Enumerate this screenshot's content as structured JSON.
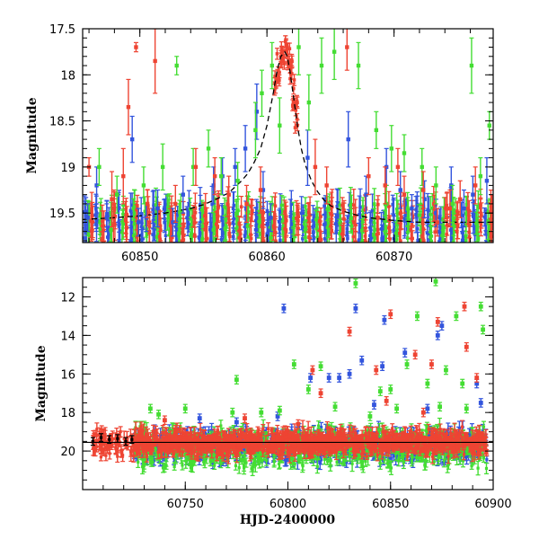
{
  "chart_data": [
    {
      "type": "scatter",
      "panel": "top",
      "title": "",
      "xlabel": "",
      "ylabel": "Magnitude",
      "xlim": [
        60845.5,
        60877.8
      ],
      "ylim": [
        19.82,
        17.5
      ],
      "y_inverted": true,
      "x_ticks": [
        60850,
        60860,
        60870
      ],
      "x_tick_labels": [
        "60850",
        "60860",
        "60870"
      ],
      "y_ticks": [
        17.5,
        18,
        18.5,
        19,
        19.5
      ],
      "y_tick_labels": [
        "17.5",
        "18",
        "18.5",
        "19",
        "19.5"
      ],
      "grid": false,
      "legend": "none",
      "series": [
        {
          "color": "#3355dd",
          "points": [
            [
              60845.9,
              19.55,
              0.15
            ],
            [
              60846.6,
              19.2,
              0.2
            ],
            [
              60847.4,
              19.55,
              0.15
            ],
            [
              60848.3,
              19.45,
              0.15
            ],
            [
              60849.4,
              18.7,
              0.25
            ],
            [
              60849.9,
              19.6,
              0.15
            ],
            [
              60850.5,
              19.55,
              0.15
            ],
            [
              60851.4,
              19.45,
              0.2
            ],
            [
              60852.6,
              19.6,
              0.15
            ],
            [
              60853.4,
              19.3,
              0.2
            ],
            [
              60855.8,
              19.2,
              0.2
            ],
            [
              60856.5,
              19.1,
              0.2
            ],
            [
              60857.5,
              19.0,
              0.2
            ],
            [
              60858.3,
              18.8,
              0.25
            ],
            [
              60859.2,
              18.4,
              0.3
            ],
            [
              60859.7,
              19.25,
              0.2
            ],
            [
              60860.3,
              19.55,
              0.15
            ],
            [
              60863.2,
              18.9,
              0.3
            ],
            [
              60866.4,
              18.7,
              0.3
            ],
            [
              60867.8,
              19.3,
              0.2
            ],
            [
              60869.4,
              19.0,
              0.2
            ],
            [
              60870.5,
              19.25,
              0.2
            ],
            [
              60871.4,
              19.45,
              0.15
            ],
            [
              60872.4,
              19.35,
              0.2
            ],
            [
              60873.3,
              19.5,
              0.15
            ],
            [
              60874.5,
              19.2,
              0.2
            ],
            [
              60875.5,
              19.45,
              0.2
            ],
            [
              60876.2,
              19.3,
              0.2
            ],
            [
              60877.3,
              19.15,
              0.25
            ]
          ]
        },
        {
          "color": "#44dd33",
          "points": [
            [
              60846.8,
              19.0,
              0.2
            ],
            [
              60848.2,
              19.3,
              0.2
            ],
            [
              60850.3,
              19.2,
              0.2
            ],
            [
              60851.8,
              19.0,
              0.25
            ],
            [
              60852.9,
              17.9,
              0.1
            ],
            [
              60854.2,
              19.0,
              0.2
            ],
            [
              60855.4,
              18.8,
              0.2
            ],
            [
              60856.4,
              19.1,
              0.2
            ],
            [
              60857.7,
              19.15,
              0.2
            ],
            [
              60859.1,
              18.6,
              0.3
            ],
            [
              60859.6,
              18.2,
              0.25
            ],
            [
              60860.4,
              17.9,
              0.25
            ],
            [
              60861.0,
              18.55,
              0.3
            ],
            [
              60862.5,
              17.7,
              0.3
            ],
            [
              60863.3,
              18.3,
              0.3
            ],
            [
              60864.3,
              17.9,
              0.3
            ],
            [
              60865.3,
              17.75,
              0.3
            ],
            [
              60867.2,
              17.9,
              0.25
            ],
            [
              60868.6,
              18.6,
              0.2
            ],
            [
              60869.4,
              19.4,
              0.2
            ],
            [
              60869.8,
              18.8,
              0.25
            ],
            [
              60870.8,
              18.85,
              0.2
            ],
            [
              60872.2,
              19.0,
              0.2
            ],
            [
              60873.3,
              19.2,
              0.2
            ],
            [
              60874.6,
              19.4,
              0.2
            ],
            [
              60876.1,
              17.9,
              0.3
            ],
            [
              60876.8,
              19.1,
              0.2
            ],
            [
              60877.5,
              18.55,
              0.15
            ]
          ]
        },
        {
          "color": "#ee4433",
          "points": [
            [
              60846.0,
              19.0,
              0.1
            ],
            [
              60847.8,
              19.35,
              0.3
            ],
            [
              60848.7,
              19.1,
              0.3
            ],
            [
              60849.1,
              18.35,
              0.3
            ],
            [
              60849.7,
              17.7,
              0.05
            ],
            [
              60850.6,
              19.4,
              0.15
            ],
            [
              60851.2,
              17.85,
              0.35
            ],
            [
              60852.8,
              19.4,
              0.2
            ],
            [
              60854.4,
              19.0,
              0.2
            ],
            [
              60855.9,
              19.1,
              0.2
            ],
            [
              60857.0,
              19.3,
              0.2
            ],
            [
              60858.4,
              19.4,
              0.2
            ],
            [
              60859.5,
              19.25,
              0.25
            ],
            [
              60863.8,
              19.0,
              0.3
            ],
            [
              60864.7,
              19.2,
              0.2
            ],
            [
              60866.3,
              17.7,
              0.25
            ],
            [
              60868.0,
              19.1,
              0.2
            ],
            [
              60869.3,
              19.2,
              0.2
            ],
            [
              60870.3,
              19.0,
              0.2
            ],
            [
              60870.8,
              19.3,
              0.2
            ],
            [
              60872.3,
              19.25,
              0.2
            ],
            [
              60873.4,
              19.6,
              0.15
            ],
            [
              60874.4,
              19.45,
              0.2
            ],
            [
              60875.2,
              19.35,
              0.2
            ],
            [
              60876.4,
              19.2,
              0.2
            ]
          ]
        }
      ],
      "model_curve": {
        "style": "dashed",
        "color": "#000000",
        "x": [
          60845.5,
          60848,
          60850,
          60852,
          60854,
          60855,
          60856,
          60857,
          60858,
          60858.5,
          60859,
          60859.5,
          60860,
          60860.5,
          60860.8,
          60861.1,
          60861.4,
          60861.6,
          60861.8,
          60862.1,
          60862.4,
          60862.7,
          60863,
          60863.5,
          60864,
          60864.5,
          60865,
          60866,
          60867,
          60868,
          60870,
          60872,
          60875,
          60877.8
        ],
        "y": [
          19.57,
          19.55,
          19.53,
          19.5,
          19.45,
          19.41,
          19.35,
          19.28,
          19.15,
          19.07,
          18.95,
          18.8,
          18.55,
          18.2,
          17.95,
          17.8,
          17.75,
          17.8,
          17.95,
          18.25,
          18.55,
          18.8,
          18.97,
          19.15,
          19.27,
          19.36,
          19.42,
          19.48,
          19.52,
          19.55,
          19.58,
          19.6,
          19.6,
          19.6
        ]
      },
      "peak_band": {
        "color": "#ee4433",
        "x": [
          60860.7,
          60860.9,
          60861.1,
          60861.3,
          60861.5,
          60861.7,
          60861.9,
          60862.1,
          60862.3
        ],
        "y": [
          18.1,
          17.9,
          17.8,
          17.75,
          17.78,
          17.85,
          18.0,
          18.2,
          18.45
        ]
      }
    },
    {
      "type": "scatter",
      "panel": "bottom",
      "title": "",
      "xlabel": "HJD-2400000",
      "ylabel": "Magnitude",
      "xlim": [
        60700,
        60900
      ],
      "ylim": [
        22,
        11
      ],
      "y_inverted": true,
      "x_ticks": [
        60750,
        60800,
        60850,
        60900
      ],
      "x_tick_labels": [
        "60750",
        "60800",
        "60850",
        "60900"
      ],
      "y_ticks": [
        12,
        14,
        16,
        18,
        20
      ],
      "y_tick_labels": [
        "12",
        "14",
        "16",
        "18",
        "20"
      ],
      "grid": false,
      "legend": "none",
      "series": [
        {
          "color": "#3355dd",
          "points": [
            [
              60798,
              12.6
            ],
            [
              60833,
              12.6
            ],
            [
              60847,
              13.2
            ],
            [
              60875,
              13.5
            ],
            [
              60857,
              14.9
            ],
            [
              60873,
              14.0
            ],
            [
              60836,
              15.3
            ],
            [
              60811,
              16.2
            ],
            [
              60820,
              16.2
            ],
            [
              60825,
              16.2
            ],
            [
              60830,
              16.0
            ],
            [
              60846,
              15.6
            ],
            [
              60892,
              16.5
            ],
            [
              60894,
              17.5
            ],
            [
              60757,
              18.3
            ],
            [
              60775,
              18.5
            ],
            [
              60795,
              18.2
            ],
            [
              60842,
              17.6
            ],
            [
              60868,
              17.8
            ]
          ]
        },
        {
          "color": "#44dd33",
          "points": [
            [
              60833,
              11.3
            ],
            [
              60872,
              11.2
            ],
            [
              60894,
              12.5
            ],
            [
              60863,
              13.0
            ],
            [
              60882,
              13.0
            ],
            [
              60895,
              13.7
            ],
            [
              60803,
              15.5
            ],
            [
              60816,
              15.6
            ],
            [
              60858,
              15.5
            ],
            [
              60868,
              16.5
            ],
            [
              60877,
              15.8
            ],
            [
              60885,
              16.5
            ],
            [
              60775,
              16.3
            ],
            [
              60810,
              16.8
            ],
            [
              60845,
              16.9
            ],
            [
              60850,
              16.8
            ],
            [
              60733,
              17.8
            ],
            [
              60737,
              18.1
            ],
            [
              60750,
              17.8
            ],
            [
              60773,
              18.0
            ],
            [
              60787,
              18.0
            ],
            [
              60796,
              17.9
            ],
            [
              60823,
              17.7
            ],
            [
              60840,
              18.2
            ],
            [
              60853,
              17.8
            ],
            [
              60874,
              17.7
            ],
            [
              60887,
              17.8
            ]
          ]
        },
        {
          "color": "#ee4433",
          "points": [
            [
              60850,
              12.9
            ],
            [
              60873,
              13.3
            ],
            [
              60886,
              12.5
            ],
            [
              60830,
              13.8
            ],
            [
              60812,
              15.8
            ],
            [
              60862,
              15.0
            ],
            [
              60843,
              15.8
            ],
            [
              60870,
              15.5
            ],
            [
              60887,
              14.6
            ],
            [
              60892,
              16.2
            ],
            [
              60816,
              17.0
            ],
            [
              60848,
              17.4
            ],
            [
              60779,
              18.3
            ],
            [
              60805,
              18.6
            ],
            [
              60740,
              18.4
            ],
            [
              60866,
              18.0
            ]
          ]
        }
      ],
      "dense_bands": [
        {
          "color": "#3355dd",
          "x_range": [
            60725,
            60897
          ],
          "y_center": 19.7,
          "y_spread": 1.0
        },
        {
          "color": "#44dd33",
          "x_range": [
            60725,
            60897
          ],
          "y_center": 19.8,
          "y_spread": 1.2
        },
        {
          "color": "#ee4433",
          "x_range": [
            60705,
            60897
          ],
          "y_center": 19.55,
          "y_spread": 0.85
        }
      ],
      "black_points": [
        [
          60705,
          19.5
        ],
        [
          60709,
          19.3
        ],
        [
          60713,
          19.4
        ],
        [
          60717,
          19.35
        ],
        [
          60721,
          19.5
        ],
        [
          60724,
          19.4
        ]
      ],
      "model_line": {
        "color": "#000000",
        "x": [
          60700,
          60900
        ],
        "y": [
          19.55,
          19.55
        ]
      }
    }
  ]
}
